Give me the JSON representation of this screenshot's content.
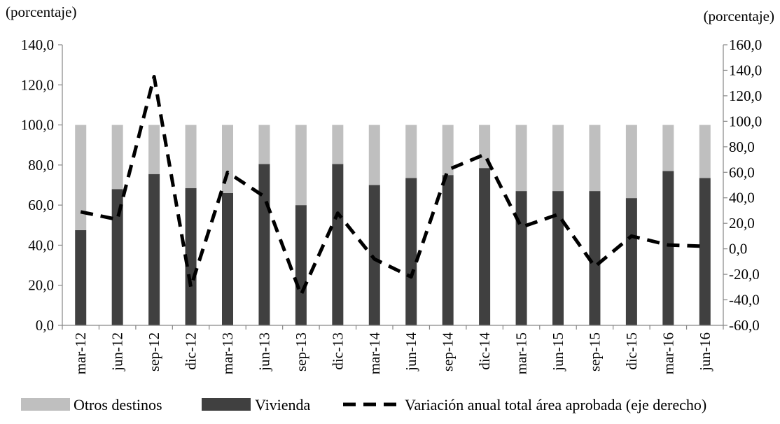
{
  "chart_data": {
    "type": "bar",
    "title": "",
    "y_left_label": "(porcentaje)",
    "y_right_label": "(porcentaje)",
    "categories": [
      "mar-12",
      "jun-12",
      "sep-12",
      "dic-12",
      "mar-13",
      "jun-13",
      "sep-13",
      "dic-13",
      "mar-14",
      "jun-14",
      "sep-14",
      "dic-14",
      "mar-15",
      "jun-15",
      "sep-15",
      "dic-15",
      "mar-16",
      "jun-16"
    ],
    "ylim_left": [
      0,
      140
    ],
    "ylim_right": [
      -60,
      160
    ],
    "y_left_ticks": [
      "0,0",
      "20,0",
      "40,0",
      "60,0",
      "80,0",
      "100,0",
      "120,0",
      "140,0"
    ],
    "y_right_ticks": [
      "-60,0",
      "-40,0",
      "-20,0",
      "0,0",
      "20,0",
      "40,0",
      "60,0",
      "80,0",
      "100,0",
      "120,0",
      "140,0",
      "160,0"
    ],
    "grid": false,
    "legend_position": "bottom",
    "series": [
      {
        "name": "Vivienda",
        "type": "stacked-bar",
        "axis": "left",
        "color": "#404040",
        "values": [
          47.5,
          68,
          75.5,
          68.5,
          66,
          80.5,
          60,
          80.5,
          70,
          73.5,
          75,
          78.5,
          67,
          67,
          67,
          63.5,
          77,
          73.5
        ]
      },
      {
        "name": "Otros destinos",
        "type": "stacked-bar",
        "axis": "left",
        "color": "#bfbfbf",
        "values": [
          52.5,
          32,
          24.5,
          31.5,
          34,
          19.5,
          40,
          19.5,
          30,
          26.5,
          25,
          21.5,
          33,
          33,
          33,
          36.5,
          23,
          26.5
        ]
      },
      {
        "name": "Variación anual total área aprobada (eje derecho)",
        "type": "line",
        "axis": "right",
        "style": "dashed",
        "color": "#000000",
        "values": [
          29,
          23,
          135,
          -30,
          60,
          41,
          -36,
          28,
          -8,
          -22,
          62,
          74,
          17,
          27,
          -14,
          10,
          3,
          2
        ]
      }
    ]
  }
}
